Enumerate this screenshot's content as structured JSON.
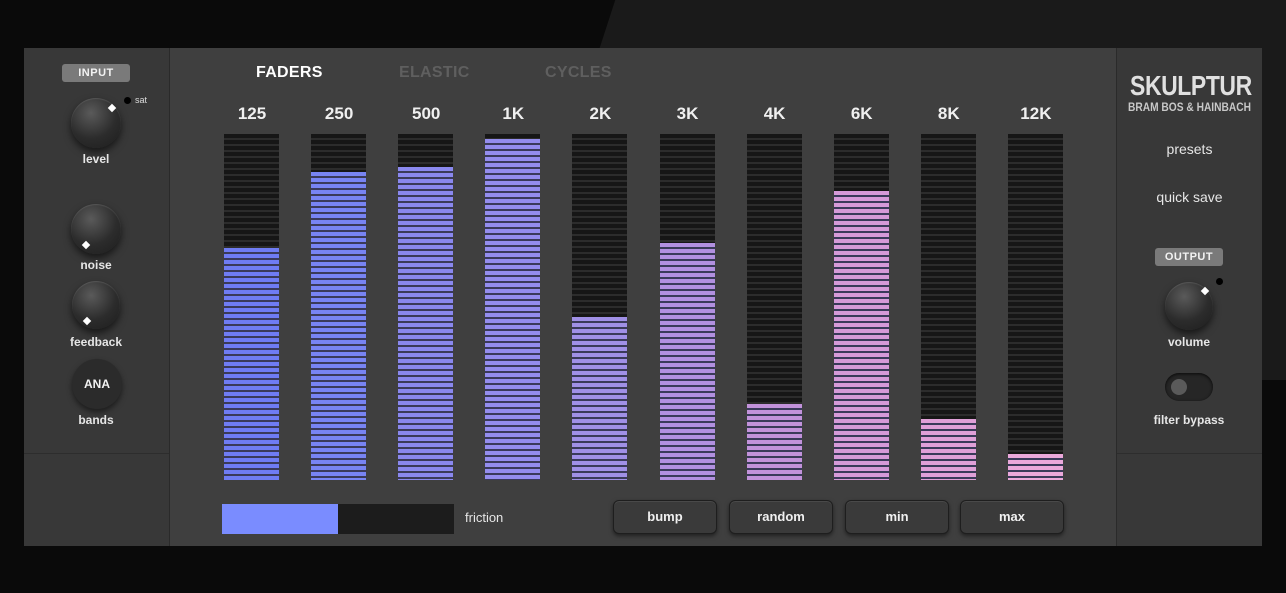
{
  "left_panel": {
    "input_label": "INPUT",
    "sat_label": "sat",
    "level_label": "level",
    "noise_label": "noise",
    "feedback_label": "feedback",
    "bands_button": "ANA",
    "bands_label": "bands"
  },
  "tabs": [
    {
      "label": "FADERS",
      "active": true
    },
    {
      "label": "ELASTIC",
      "active": false
    },
    {
      "label": "CYCLES",
      "active": false
    }
  ],
  "faders": [
    {
      "band": "125",
      "level": 0.67,
      "color": "#6f7cf2"
    },
    {
      "band": "250",
      "level": 0.89,
      "color": "#7884f2"
    },
    {
      "band": "500",
      "level": 0.905,
      "color": "#8a88ee"
    },
    {
      "band": "1K",
      "level": 0.985,
      "color": "#948ded"
    },
    {
      "band": "2K",
      "level": 0.47,
      "color": "#a090e6"
    },
    {
      "band": "3K",
      "level": 0.685,
      "color": "#b290e0"
    },
    {
      "band": "4K",
      "level": 0.22,
      "color": "#c292da"
    },
    {
      "band": "6K",
      "level": 0.835,
      "color": "#d69ad8"
    },
    {
      "band": "8K",
      "level": 0.175,
      "color": "#e0a0d8"
    },
    {
      "band": "12K",
      "level": 0.075,
      "color": "#eaa8da"
    }
  ],
  "friction": {
    "label": "friction",
    "value": 0.5,
    "color": "#7a8cff"
  },
  "buttons": {
    "bump": "bump",
    "random": "random",
    "min": "min",
    "max": "max"
  },
  "right_panel": {
    "logo_title": "SKULPTUR",
    "logo_subtitle": "BRAM BOS & HAINBACH",
    "presets": "presets",
    "quick_save": "quick save",
    "output_label": "OUTPUT",
    "volume_label": "volume",
    "filter_bypass_label": "filter bypass"
  }
}
